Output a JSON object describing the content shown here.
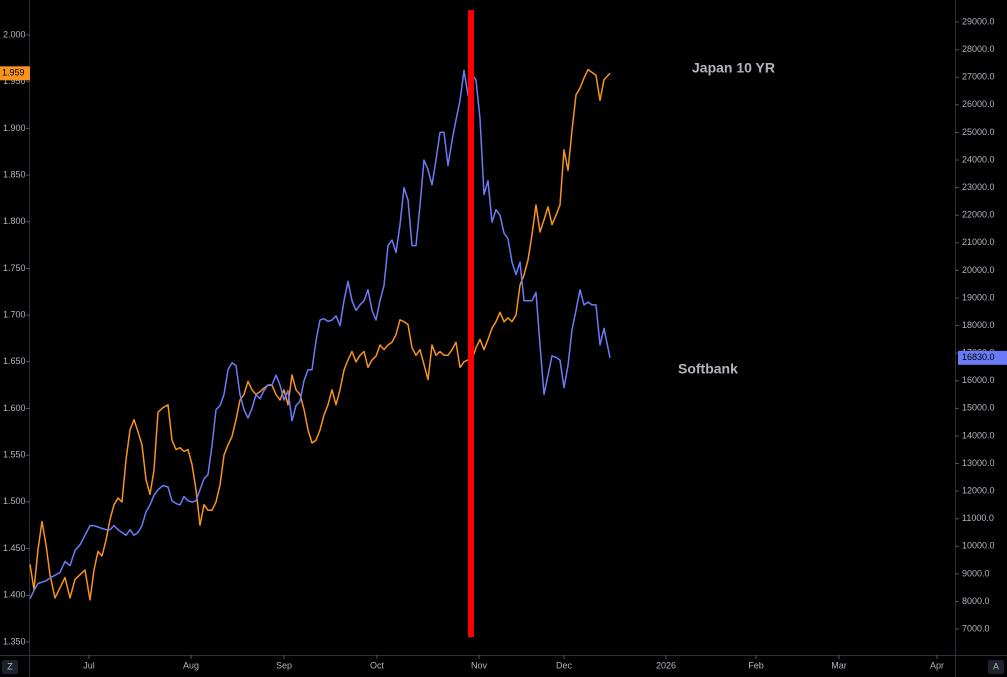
{
  "controls": [
    "Z",
    "A"
  ],
  "chart_data": {
    "type": "line",
    "annotation_color": "#f7931e",
    "x": [
      0,
      4,
      8,
      12,
      16,
      20,
      25,
      30,
      35,
      40,
      45,
      50,
      55,
      60,
      64,
      68,
      72,
      76,
      80,
      84,
      88,
      92,
      96,
      100,
      104,
      108,
      112,
      116,
      120,
      124,
      128,
      133,
      138,
      142,
      146,
      150,
      154,
      158,
      162,
      166,
      170,
      174,
      178,
      182,
      186,
      190,
      194,
      198,
      202,
      206,
      210,
      214,
      218,
      222,
      226,
      230,
      234,
      238,
      242,
      246,
      250,
      254,
      258,
      262,
      266,
      270,
      274,
      278,
      282,
      286,
      290,
      294,
      298,
      302,
      306,
      310,
      314,
      318,
      322,
      326,
      330,
      334,
      338,
      342,
      346,
      350,
      354,
      358,
      362,
      366,
      370,
      374,
      378,
      382,
      386,
      390,
      394,
      398,
      402,
      406,
      410,
      414,
      418,
      422,
      426,
      430,
      434,
      438,
      442,
      446,
      450,
      454,
      458,
      462,
      466,
      470,
      474,
      478,
      482,
      486,
      490,
      494,
      498,
      502,
      506,
      510,
      514,
      518,
      522,
      526,
      530,
      534,
      538,
      542,
      546,
      550,
      554,
      558,
      562,
      566,
      570,
      574,
      580
    ],
    "xlim": [
      0,
      925
    ],
    "xticks": [
      {
        "value": 59,
        "label": "Jul"
      },
      {
        "value": 161,
        "label": "Aug"
      },
      {
        "value": 254,
        "label": "Sep"
      },
      {
        "value": 347,
        "label": "Oct"
      },
      {
        "value": 449,
        "label": "Nov"
      },
      {
        "value": 534,
        "label": "Dec"
      },
      {
        "value": 636,
        "label": "2026"
      },
      {
        "value": 726,
        "label": "Feb"
      },
      {
        "value": 809,
        "label": "Mar"
      },
      {
        "value": 907,
        "label": "Apr"
      }
    ],
    "ylim": [
      1.336,
      2.0375
    ],
    "yticks": [
      {
        "value": 1.35,
        "label": "1.350"
      },
      {
        "value": 1.4,
        "label": "1.400"
      },
      {
        "value": 1.45,
        "label": "1.450"
      },
      {
        "value": 1.5,
        "label": "1.500"
      },
      {
        "value": 1.55,
        "label": "1.550"
      },
      {
        "value": 1.6,
        "label": "1.600"
      },
      {
        "value": 1.65,
        "label": "1.650"
      },
      {
        "value": 1.7,
        "label": "1.700"
      },
      {
        "value": 1.75,
        "label": "1.750"
      },
      {
        "value": 1.8,
        "label": "1.800"
      },
      {
        "value": 1.85,
        "label": "1.850"
      },
      {
        "value": 1.9,
        "label": "1.900"
      },
      {
        "value": 1.95,
        "label": "1.950"
      },
      {
        "value": 2.0,
        "label": "2.000"
      }
    ],
    "y2lim": [
      6060,
      29800
    ],
    "y2ticks": [
      {
        "value": 7000,
        "label": "7000.0"
      },
      {
        "value": 8000,
        "label": "8000.0"
      },
      {
        "value": 9000,
        "label": "9000.0"
      },
      {
        "value": 10000,
        "label": "10000.0"
      },
      {
        "value": 11000,
        "label": "11000.0"
      },
      {
        "value": 12000,
        "label": "12000.0"
      },
      {
        "value": 13000,
        "label": "13000.0"
      },
      {
        "value": 14000,
        "label": "14000.0"
      },
      {
        "value": 15000,
        "label": "15000.0"
      },
      {
        "value": 16000,
        "label": "16000.0"
      },
      {
        "value": 17000,
        "label": "17000.0"
      },
      {
        "value": 18000,
        "label": "18000.0"
      },
      {
        "value": 19000,
        "label": "19000.0"
      },
      {
        "value": 20000,
        "label": "20000.0"
      },
      {
        "value": 21000,
        "label": "21000.0"
      },
      {
        "value": 22000,
        "label": "22000.0"
      },
      {
        "value": 23000,
        "label": "23000.0"
      },
      {
        "value": 24000,
        "label": "24000.0"
      },
      {
        "value": 25000,
        "label": "25000.0"
      },
      {
        "value": 26000,
        "label": "26000.0"
      },
      {
        "value": 27000,
        "label": "27000.0"
      },
      {
        "value": 28000,
        "label": "28000.0"
      },
      {
        "value": 29000,
        "label": "29000.0"
      }
    ],
    "series": [
      {
        "name": "Japan 10 YR",
        "color": "#f7931e",
        "last_value_label": "1.959",
        "values": [
          1.433,
          1.406,
          1.449,
          1.479,
          1.454,
          1.422,
          1.397,
          1.408,
          1.419,
          1.397,
          1.417,
          1.422,
          1.427,
          1.395,
          1.427,
          1.447,
          1.442,
          1.459,
          1.481,
          1.497,
          1.504,
          1.5,
          1.545,
          1.577,
          1.588,
          1.575,
          1.561,
          1.524,
          1.508,
          1.534,
          1.596,
          1.601,
          1.604,
          1.566,
          1.556,
          1.558,
          1.554,
          1.556,
          1.54,
          1.513,
          1.475,
          1.497,
          1.491,
          1.491,
          1.5,
          1.518,
          1.55,
          1.561,
          1.57,
          1.588,
          1.609,
          1.615,
          1.629,
          1.62,
          1.615,
          1.618,
          1.622,
          1.625,
          1.625,
          1.615,
          1.609,
          1.62,
          1.604,
          1.636,
          1.62,
          1.615,
          1.599,
          1.577,
          1.563,
          1.566,
          1.577,
          1.593,
          1.604,
          1.62,
          1.604,
          1.62,
          1.641,
          1.652,
          1.661,
          1.65,
          1.657,
          1.661,
          1.644,
          1.652,
          1.656,
          1.668,
          1.663,
          1.668,
          1.671,
          1.679,
          1.695,
          1.693,
          1.69,
          1.665,
          1.657,
          1.663,
          1.647,
          1.631,
          1.668,
          1.657,
          1.661,
          1.657,
          1.657,
          1.663,
          1.671,
          1.644,
          1.65,
          1.652,
          1.652,
          1.665,
          1.674,
          1.663,
          1.674,
          1.686,
          1.693,
          1.703,
          1.693,
          1.697,
          1.693,
          1.7,
          1.732,
          1.743,
          1.759,
          1.786,
          1.818,
          1.789,
          1.802,
          1.816,
          1.797,
          1.807,
          1.818,
          1.877,
          1.855,
          1.898,
          1.936,
          1.943,
          1.954,
          1.963,
          1.96,
          1.957,
          1.93,
          1.952,
          1.959
        ]
      },
      {
        "name": "Softbank",
        "color": "#6b7bf7",
        "axis": "y2",
        "last_value_label": "16830.0",
        "values": [
          8100,
          8400,
          8650,
          8700,
          8750,
          8850,
          8950,
          9050,
          9450,
          9300,
          9850,
          10050,
          10400,
          10750,
          10750,
          10700,
          10650,
          10600,
          10600,
          10750,
          10600,
          10500,
          10400,
          10600,
          10400,
          10500,
          10750,
          11250,
          11500,
          11850,
          12050,
          12200,
          12150,
          11650,
          11550,
          11500,
          11800,
          11650,
          11600,
          11650,
          12050,
          12450,
          12600,
          13650,
          14950,
          15100,
          15500,
          16400,
          16650,
          16550,
          15500,
          14950,
          14650,
          15000,
          15500,
          15350,
          15650,
          15850,
          15850,
          16200,
          15850,
          15300,
          15650,
          14550,
          15100,
          15250,
          16000,
          16400,
          16400,
          17450,
          18200,
          18250,
          18150,
          18200,
          18350,
          18000,
          18900,
          19600,
          18900,
          18550,
          18750,
          18900,
          19300,
          18550,
          18200,
          18900,
          19450,
          20900,
          21100,
          20650,
          21650,
          23000,
          22550,
          20900,
          20900,
          22350,
          24000,
          23650,
          23100,
          24000,
          25000,
          25000,
          23800,
          24700,
          25450,
          26150,
          27250,
          26350,
          27100,
          26900,
          25500,
          22750,
          23250,
          21750,
          22200,
          22000,
          21350,
          21150,
          20300,
          19850,
          20300,
          18900,
          18900,
          18900,
          19200,
          17300,
          15500,
          16200,
          16900,
          16850,
          16750,
          15750,
          16550,
          17850,
          18550,
          19300,
          18750,
          18850,
          18750,
          18750,
          17300,
          17900,
          16830
        ]
      }
    ]
  }
}
